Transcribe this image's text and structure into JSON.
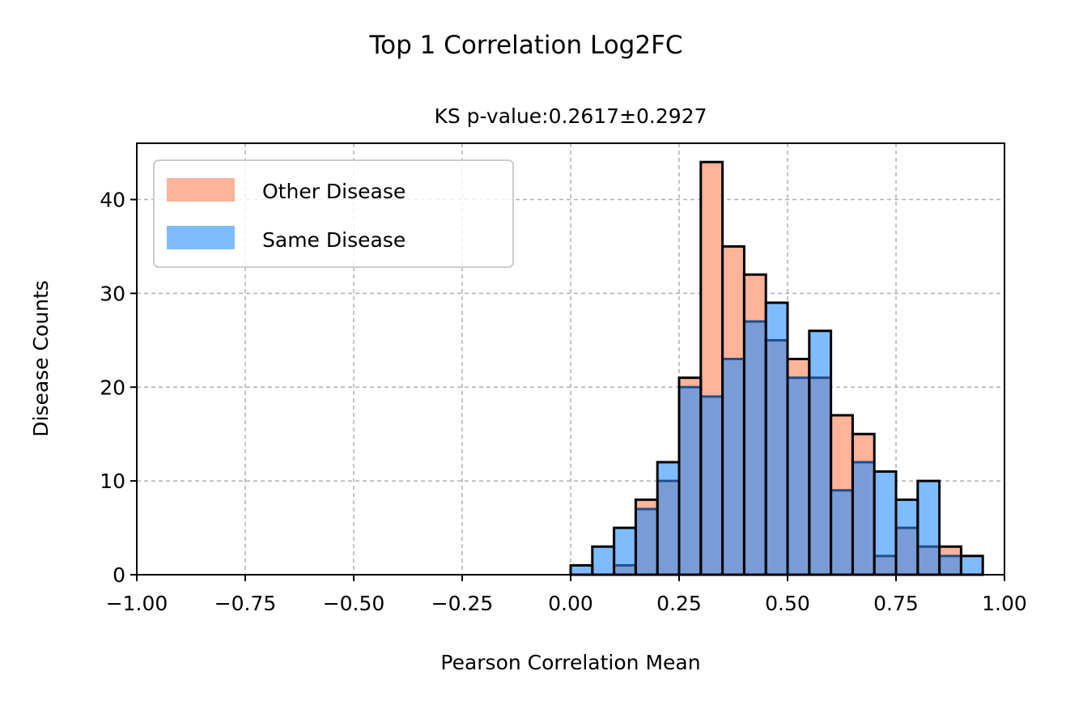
{
  "chart_data": {
    "type": "bar",
    "title": "Top 1 Correlation Log2FC",
    "subtitle": "KS p-value:0.2617±0.2927",
    "xlabel": "Pearson Correlation Mean",
    "ylabel": "Disease Counts",
    "xlim": [
      -1.0,
      1.0
    ],
    "ylim": [
      0,
      46
    ],
    "xticks": [
      "−1.00",
      "−0.75",
      "−0.50",
      "−0.25",
      "0.00",
      "0.25",
      "0.50",
      "0.75",
      "1.00"
    ],
    "yticks": [
      "0",
      "10",
      "20",
      "30",
      "40"
    ],
    "grid": true,
    "legend_position": "top-left",
    "bin_width": 0.05,
    "bin_starts": [
      0.0,
      0.05,
      0.1,
      0.15,
      0.2,
      0.25,
      0.3,
      0.35,
      0.4,
      0.45,
      0.5,
      0.55,
      0.6,
      0.65,
      0.7,
      0.75,
      0.8,
      0.85,
      0.9
    ],
    "series": [
      {
        "name": "Other Disease",
        "color": "#ffb399",
        "values": [
          0,
          0,
          1,
          8,
          10,
          21,
          44,
          35,
          32,
          25,
          23,
          21,
          17,
          15,
          2,
          5,
          3,
          3,
          0
        ]
      },
      {
        "name": "Same Disease",
        "color": "#7fbcff",
        "values": [
          1,
          3,
          5,
          7,
          12,
          20,
          19,
          23,
          27,
          29,
          21,
          26,
          9,
          12,
          11,
          8,
          10,
          2,
          2
        ]
      }
    ],
    "overlap_color": "#7a9cd6"
  }
}
